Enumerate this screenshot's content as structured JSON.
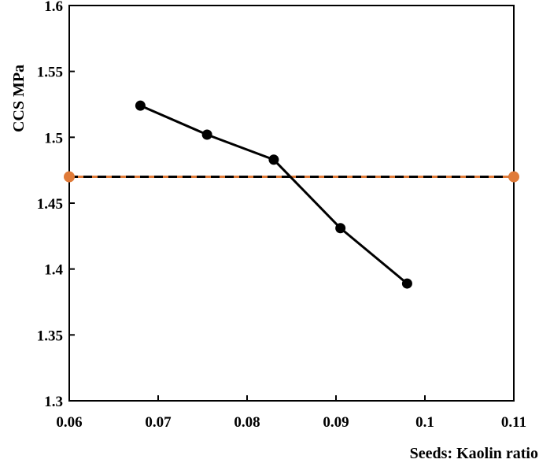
{
  "chart_data": {
    "type": "line",
    "title": "",
    "xlabel": "Seeds: Kaolin ratio",
    "ylabel": "CCS MPa",
    "xlim": [
      0.06,
      0.11
    ],
    "ylim": [
      1.3,
      1.6
    ],
    "x_ticks": [
      "0.06",
      "0.07",
      "0.08",
      "0.09",
      "0.1",
      "0.11"
    ],
    "y_ticks": [
      "1.3",
      "1.35",
      "1.4",
      "1.45",
      "1.5",
      "1.55",
      "1.6"
    ],
    "grid": false,
    "legend": "none",
    "series": [
      {
        "x": [
          0.068,
          0.0755,
          0.083,
          0.0905,
          0.098
        ],
        "y": [
          1.524,
          1.502,
          1.483,
          1.431,
          1.389
        ],
        "color": "#000000",
        "marker": "circle",
        "line_style": "solid"
      },
      {
        "x": [
          0.06,
          0.11
        ],
        "y": [
          1.47,
          1.47
        ],
        "color": "#000000",
        "marker_color": "#e07b39",
        "marker": "circle",
        "line_style": "dashed-black-orange"
      }
    ]
  }
}
